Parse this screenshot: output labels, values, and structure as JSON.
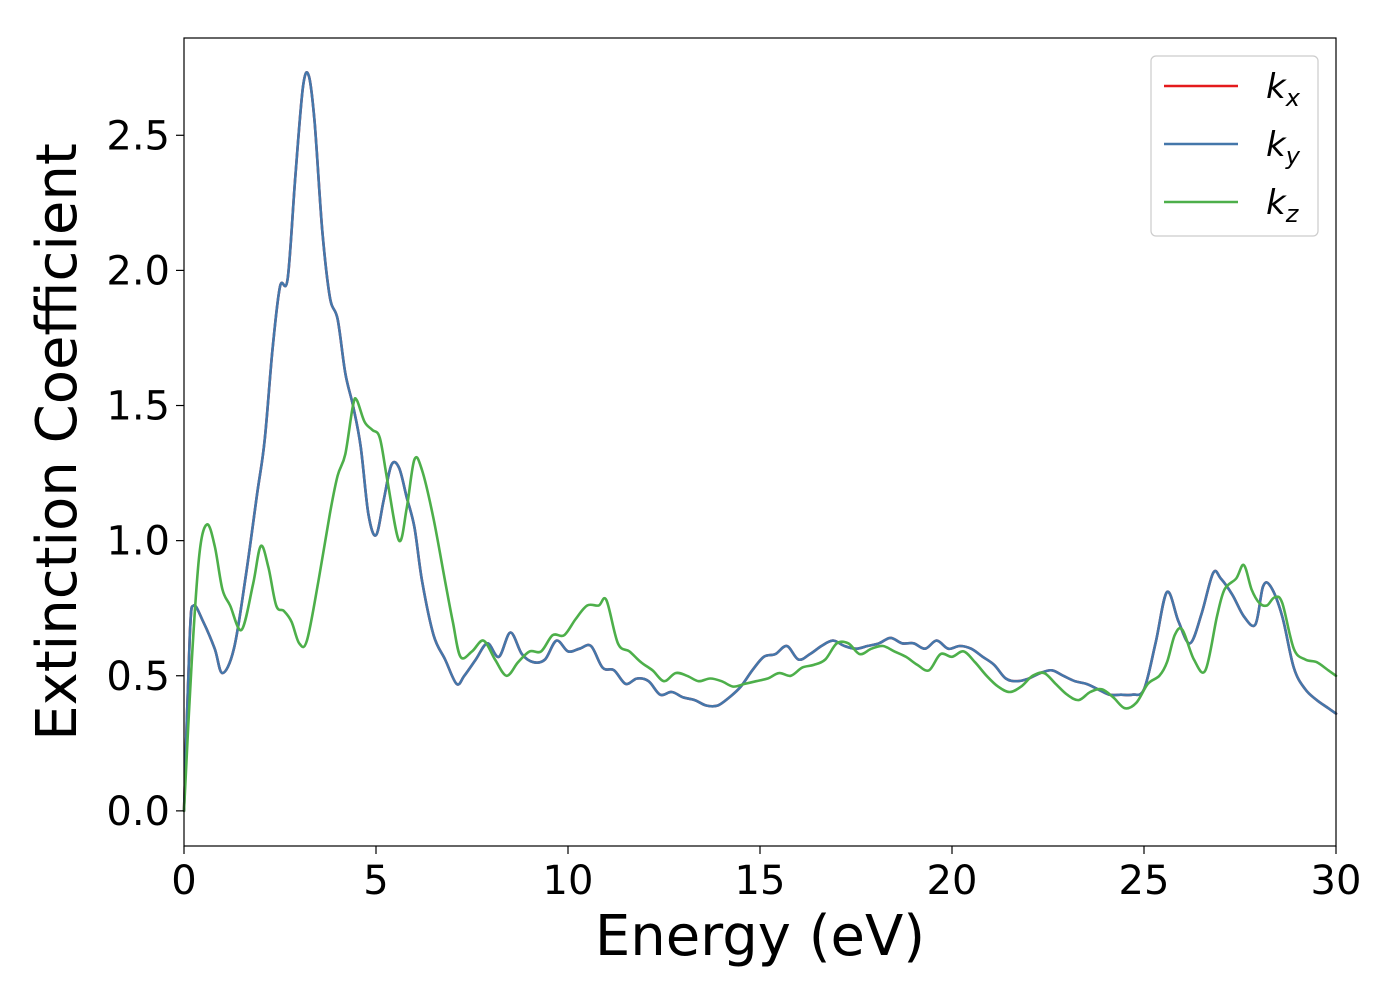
{
  "chart_data": {
    "type": "line",
    "title": "",
    "xlabel": "Energy (eV)",
    "ylabel": "Extinction Coefficient",
    "xlim": [
      0,
      30
    ],
    "ylim": [
      -0.13,
      2.86
    ],
    "xticks": [
      0,
      5,
      10,
      15,
      20,
      25,
      30
    ],
    "xtick_labels": [
      "0",
      "5",
      "10",
      "15",
      "20",
      "25",
      "30"
    ],
    "yticks": [
      0.0,
      0.5,
      1.0,
      1.5,
      2.0,
      2.5
    ],
    "ytick_labels": [
      "0.0",
      "0.5",
      "1.0",
      "1.5",
      "2.0",
      "2.5"
    ],
    "grid": false,
    "legend_position": "top-right",
    "series": [
      {
        "name": "k_x",
        "legend_base": "k",
        "legend_sub": "x",
        "color": "#e41a1c",
        "x": [
          0,
          0.15,
          0.25,
          0.5,
          0.8,
          1.0,
          1.3,
          1.6,
          1.9,
          2.1,
          2.3,
          2.5,
          2.7,
          2.9,
          3.1,
          3.25,
          3.4,
          3.6,
          3.8,
          4.0,
          4.2,
          4.4,
          4.6,
          4.8,
          5.0,
          5.2,
          5.4,
          5.6,
          5.8,
          6.0,
          6.2,
          6.5,
          6.8,
          7.1,
          7.3,
          7.6,
          7.9,
          8.2,
          8.5,
          8.8,
          9.1,
          9.4,
          9.7,
          10.0,
          10.3,
          10.6,
          10.9,
          11.2,
          11.5,
          11.8,
          12.1,
          12.4,
          12.7,
          13.0,
          13.3,
          13.6,
          13.9,
          14.2,
          14.5,
          14.8,
          15.1,
          15.4,
          15.7,
          16.0,
          16.3,
          16.6,
          16.9,
          17.2,
          17.5,
          17.8,
          18.1,
          18.4,
          18.7,
          19.0,
          19.3,
          19.6,
          19.9,
          20.2,
          20.5,
          20.8,
          21.1,
          21.4,
          21.7,
          22.0,
          22.3,
          22.6,
          22.9,
          23.2,
          23.5,
          23.8,
          24.1,
          24.4,
          24.7,
          25.0,
          25.3,
          25.6,
          25.9,
          26.2,
          26.5,
          26.8,
          27.0,
          27.3,
          27.6,
          27.9,
          28.1,
          28.3,
          28.6,
          28.9,
          29.2,
          29.5,
          29.8,
          30.0
        ],
        "y": [
          0.0,
          0.65,
          0.76,
          0.7,
          0.6,
          0.51,
          0.6,
          0.86,
          1.17,
          1.37,
          1.7,
          1.94,
          1.97,
          2.35,
          2.68,
          2.72,
          2.55,
          2.15,
          1.9,
          1.82,
          1.62,
          1.5,
          1.35,
          1.1,
          1.02,
          1.15,
          1.28,
          1.27,
          1.16,
          1.05,
          0.85,
          0.65,
          0.56,
          0.47,
          0.5,
          0.56,
          0.62,
          0.57,
          0.66,
          0.58,
          0.55,
          0.56,
          0.63,
          0.59,
          0.6,
          0.61,
          0.53,
          0.52,
          0.47,
          0.49,
          0.48,
          0.43,
          0.44,
          0.42,
          0.41,
          0.39,
          0.39,
          0.42,
          0.46,
          0.52,
          0.57,
          0.58,
          0.61,
          0.56,
          0.58,
          0.61,
          0.63,
          0.61,
          0.6,
          0.61,
          0.62,
          0.64,
          0.62,
          0.62,
          0.6,
          0.63,
          0.6,
          0.61,
          0.6,
          0.57,
          0.54,
          0.49,
          0.48,
          0.49,
          0.51,
          0.52,
          0.5,
          0.48,
          0.47,
          0.45,
          0.43,
          0.43,
          0.43,
          0.45,
          0.62,
          0.81,
          0.7,
          0.62,
          0.73,
          0.88,
          0.86,
          0.8,
          0.72,
          0.69,
          0.83,
          0.83,
          0.72,
          0.53,
          0.45,
          0.41,
          0.38,
          0.36
        ]
      },
      {
        "name": "k_y",
        "legend_base": "k",
        "legend_sub": "y",
        "color": "#4477aa",
        "x": [
          0,
          0.15,
          0.25,
          0.5,
          0.8,
          1.0,
          1.3,
          1.6,
          1.9,
          2.1,
          2.3,
          2.5,
          2.7,
          2.9,
          3.1,
          3.25,
          3.4,
          3.6,
          3.8,
          4.0,
          4.2,
          4.4,
          4.6,
          4.8,
          5.0,
          5.2,
          5.4,
          5.6,
          5.8,
          6.0,
          6.2,
          6.5,
          6.8,
          7.1,
          7.3,
          7.6,
          7.9,
          8.2,
          8.5,
          8.8,
          9.1,
          9.4,
          9.7,
          10.0,
          10.3,
          10.6,
          10.9,
          11.2,
          11.5,
          11.8,
          12.1,
          12.4,
          12.7,
          13.0,
          13.3,
          13.6,
          13.9,
          14.2,
          14.5,
          14.8,
          15.1,
          15.4,
          15.7,
          16.0,
          16.3,
          16.6,
          16.9,
          17.2,
          17.5,
          17.8,
          18.1,
          18.4,
          18.7,
          19.0,
          19.3,
          19.6,
          19.9,
          20.2,
          20.5,
          20.8,
          21.1,
          21.4,
          21.7,
          22.0,
          22.3,
          22.6,
          22.9,
          23.2,
          23.5,
          23.8,
          24.1,
          24.4,
          24.7,
          25.0,
          25.3,
          25.6,
          25.9,
          26.2,
          26.5,
          26.8,
          27.0,
          27.3,
          27.6,
          27.9,
          28.1,
          28.3,
          28.6,
          28.9,
          29.2,
          29.5,
          29.8,
          30.0
        ],
        "y": [
          0.0,
          0.65,
          0.76,
          0.7,
          0.6,
          0.51,
          0.6,
          0.86,
          1.17,
          1.37,
          1.7,
          1.94,
          1.97,
          2.35,
          2.68,
          2.72,
          2.55,
          2.15,
          1.9,
          1.82,
          1.62,
          1.5,
          1.35,
          1.1,
          1.02,
          1.15,
          1.28,
          1.27,
          1.16,
          1.05,
          0.85,
          0.65,
          0.56,
          0.47,
          0.5,
          0.56,
          0.62,
          0.57,
          0.66,
          0.58,
          0.55,
          0.56,
          0.63,
          0.59,
          0.6,
          0.61,
          0.53,
          0.52,
          0.47,
          0.49,
          0.48,
          0.43,
          0.44,
          0.42,
          0.41,
          0.39,
          0.39,
          0.42,
          0.46,
          0.52,
          0.57,
          0.58,
          0.61,
          0.56,
          0.58,
          0.61,
          0.63,
          0.61,
          0.6,
          0.61,
          0.62,
          0.64,
          0.62,
          0.62,
          0.6,
          0.63,
          0.6,
          0.61,
          0.6,
          0.57,
          0.54,
          0.49,
          0.48,
          0.49,
          0.51,
          0.52,
          0.5,
          0.48,
          0.47,
          0.45,
          0.43,
          0.43,
          0.43,
          0.45,
          0.62,
          0.81,
          0.7,
          0.62,
          0.73,
          0.88,
          0.86,
          0.8,
          0.72,
          0.69,
          0.83,
          0.83,
          0.72,
          0.53,
          0.45,
          0.41,
          0.38,
          0.36
        ]
      },
      {
        "name": "k_z",
        "legend_base": "k",
        "legend_sub": "z",
        "color": "#4daf4a",
        "x": [
          0,
          0.2,
          0.4,
          0.6,
          0.8,
          1.0,
          1.2,
          1.5,
          1.8,
          2.0,
          2.2,
          2.4,
          2.6,
          2.8,
          3.0,
          3.2,
          3.5,
          3.8,
          4.0,
          4.2,
          4.4,
          4.5,
          4.7,
          4.9,
          5.1,
          5.3,
          5.6,
          5.8,
          6.0,
          6.2,
          6.5,
          6.8,
          7.0,
          7.2,
          7.5,
          7.8,
          8.1,
          8.4,
          8.7,
          9.0,
          9.3,
          9.6,
          9.9,
          10.2,
          10.5,
          10.8,
          11.0,
          11.3,
          11.6,
          11.9,
          12.2,
          12.5,
          12.8,
          13.1,
          13.4,
          13.7,
          14.0,
          14.3,
          14.6,
          14.9,
          15.2,
          15.5,
          15.8,
          16.1,
          16.4,
          16.7,
          17.0,
          17.3,
          17.6,
          17.9,
          18.2,
          18.5,
          18.8,
          19.1,
          19.4,
          19.7,
          20.0,
          20.3,
          20.6,
          20.9,
          21.2,
          21.5,
          21.8,
          22.1,
          22.4,
          22.7,
          23.0,
          23.3,
          23.6,
          23.9,
          24.2,
          24.5,
          24.8,
          25.1,
          25.4,
          25.6,
          25.8,
          26.0,
          26.3,
          26.6,
          26.9,
          27.1,
          27.4,
          27.6,
          27.8,
          28.0,
          28.2,
          28.4,
          28.6,
          28.9,
          29.2,
          29.5,
          29.8,
          30.0
        ],
        "y": [
          0.0,
          0.55,
          0.95,
          1.06,
          0.98,
          0.82,
          0.76,
          0.67,
          0.84,
          0.98,
          0.9,
          0.76,
          0.74,
          0.7,
          0.62,
          0.63,
          0.85,
          1.1,
          1.24,
          1.32,
          1.5,
          1.52,
          1.44,
          1.41,
          1.38,
          1.22,
          1.0,
          1.12,
          1.3,
          1.26,
          1.08,
          0.85,
          0.7,
          0.57,
          0.59,
          0.63,
          0.56,
          0.5,
          0.55,
          0.59,
          0.59,
          0.65,
          0.65,
          0.71,
          0.76,
          0.76,
          0.78,
          0.62,
          0.59,
          0.55,
          0.52,
          0.48,
          0.51,
          0.5,
          0.48,
          0.49,
          0.48,
          0.46,
          0.47,
          0.48,
          0.49,
          0.51,
          0.5,
          0.53,
          0.54,
          0.56,
          0.62,
          0.62,
          0.58,
          0.6,
          0.61,
          0.59,
          0.57,
          0.54,
          0.52,
          0.58,
          0.57,
          0.59,
          0.55,
          0.5,
          0.46,
          0.44,
          0.46,
          0.5,
          0.51,
          0.47,
          0.43,
          0.41,
          0.44,
          0.45,
          0.42,
          0.38,
          0.4,
          0.47,
          0.5,
          0.55,
          0.65,
          0.67,
          0.56,
          0.52,
          0.72,
          0.82,
          0.86,
          0.91,
          0.82,
          0.77,
          0.76,
          0.79,
          0.77,
          0.6,
          0.56,
          0.55,
          0.52,
          0.5
        ]
      }
    ]
  }
}
